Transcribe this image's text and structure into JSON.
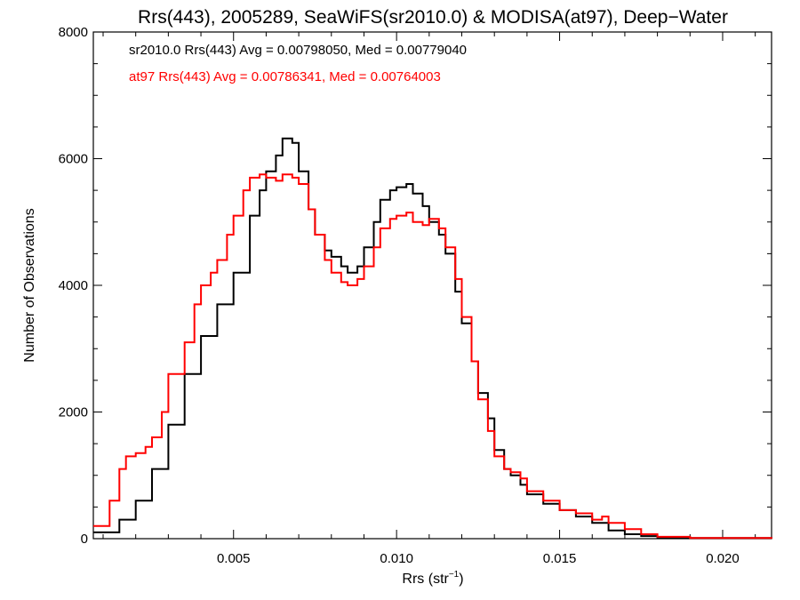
{
  "chart_data": {
    "type": "line",
    "title": "Rrs(443), 2005289, SeaWiFS(sr2010.0) & MODISA(at97), Deep−Water",
    "xlabel": "Rrs (str",
    "xlabel_sup": "−1",
    "xlabel_close": ")",
    "ylabel": "Number of Observations",
    "xlim": [
      0.0007,
      0.0215
    ],
    "ylim": [
      0,
      8000
    ],
    "xticks": [
      0.005,
      0.01,
      0.015,
      0.02
    ],
    "xtick_labels": [
      "0.005",
      "0.010",
      "0.015",
      "0.020"
    ],
    "yticks": [
      0,
      2000,
      4000,
      6000,
      8000
    ],
    "ytick_labels": [
      "0",
      "2000",
      "4000",
      "6000",
      "8000"
    ],
    "grid": false,
    "legend_position": "top-left",
    "series": [
      {
        "name": "sr2010.0 Rrs(443) Avg = 0.00798050, Med = 0.00779040",
        "color": "#000000",
        "points": [
          [
            0.0007,
            100
          ],
          [
            0.0015,
            300
          ],
          [
            0.002,
            600
          ],
          [
            0.0025,
            1100
          ],
          [
            0.003,
            1800
          ],
          [
            0.0035,
            2600
          ],
          [
            0.004,
            3200
          ],
          [
            0.0045,
            3700
          ],
          [
            0.005,
            4200
          ],
          [
            0.0055,
            5100
          ],
          [
            0.0058,
            5500
          ],
          [
            0.006,
            5800
          ],
          [
            0.0063,
            6050
          ],
          [
            0.0065,
            6320
          ],
          [
            0.0068,
            6250
          ],
          [
            0.007,
            5800
          ],
          [
            0.0073,
            5200
          ],
          [
            0.0075,
            4800
          ],
          [
            0.0078,
            4550
          ],
          [
            0.008,
            4450
          ],
          [
            0.0083,
            4300
          ],
          [
            0.0085,
            4200
          ],
          [
            0.0088,
            4300
          ],
          [
            0.009,
            4600
          ],
          [
            0.0093,
            5000
          ],
          [
            0.0095,
            5350
          ],
          [
            0.0098,
            5500
          ],
          [
            0.01,
            5550
          ],
          [
            0.0103,
            5600
          ],
          [
            0.0105,
            5450
          ],
          [
            0.0108,
            5250
          ],
          [
            0.011,
            5000
          ],
          [
            0.0113,
            4800
          ],
          [
            0.0115,
            4500
          ],
          [
            0.0118,
            3900
          ],
          [
            0.012,
            3400
          ],
          [
            0.0123,
            2800
          ],
          [
            0.0125,
            2300
          ],
          [
            0.0128,
            1900
          ],
          [
            0.013,
            1400
          ],
          [
            0.0133,
            1100
          ],
          [
            0.0135,
            1000
          ],
          [
            0.0138,
            850
          ],
          [
            0.014,
            700
          ],
          [
            0.0145,
            550
          ],
          [
            0.015,
            450
          ],
          [
            0.0155,
            350
          ],
          [
            0.016,
            250
          ],
          [
            0.0165,
            130
          ],
          [
            0.017,
            70
          ],
          [
            0.0175,
            40
          ],
          [
            0.018,
            20
          ],
          [
            0.019,
            10
          ],
          [
            0.0215,
            0
          ]
        ]
      },
      {
        "name": "at97 Rrs(443) Avg = 0.00786341, Med = 0.00764003",
        "color": "#ff0000",
        "points": [
          [
            0.0007,
            200
          ],
          [
            0.0012,
            600
          ],
          [
            0.0015,
            1100
          ],
          [
            0.0017,
            1300
          ],
          [
            0.002,
            1350
          ],
          [
            0.0023,
            1450
          ],
          [
            0.0025,
            1600
          ],
          [
            0.0028,
            2000
          ],
          [
            0.003,
            2600
          ],
          [
            0.0035,
            3100
          ],
          [
            0.0038,
            3700
          ],
          [
            0.004,
            4000
          ],
          [
            0.0043,
            4200
          ],
          [
            0.0045,
            4400
          ],
          [
            0.0048,
            4800
          ],
          [
            0.005,
            5100
          ],
          [
            0.0053,
            5500
          ],
          [
            0.0055,
            5700
          ],
          [
            0.0058,
            5750
          ],
          [
            0.006,
            5700
          ],
          [
            0.0063,
            5650
          ],
          [
            0.0065,
            5750
          ],
          [
            0.0068,
            5700
          ],
          [
            0.007,
            5600
          ],
          [
            0.0073,
            5200
          ],
          [
            0.0075,
            4800
          ],
          [
            0.0078,
            4400
          ],
          [
            0.008,
            4200
          ],
          [
            0.0083,
            4050
          ],
          [
            0.0085,
            4000
          ],
          [
            0.0088,
            4100
          ],
          [
            0.009,
            4300
          ],
          [
            0.0093,
            4600
          ],
          [
            0.0095,
            4900
          ],
          [
            0.0098,
            5050
          ],
          [
            0.01,
            5100
          ],
          [
            0.0103,
            5150
          ],
          [
            0.0105,
            5000
          ],
          [
            0.0108,
            4950
          ],
          [
            0.011,
            5050
          ],
          [
            0.0113,
            4900
          ],
          [
            0.0115,
            4600
          ],
          [
            0.0118,
            4100
          ],
          [
            0.012,
            3500
          ],
          [
            0.0123,
            2800
          ],
          [
            0.0125,
            2200
          ],
          [
            0.0128,
            1700
          ],
          [
            0.013,
            1300
          ],
          [
            0.0133,
            1100
          ],
          [
            0.0135,
            1050
          ],
          [
            0.0138,
            950
          ],
          [
            0.014,
            750
          ],
          [
            0.0145,
            600
          ],
          [
            0.015,
            450
          ],
          [
            0.0155,
            400
          ],
          [
            0.016,
            300
          ],
          [
            0.0163,
            350
          ],
          [
            0.0165,
            250
          ],
          [
            0.017,
            150
          ],
          [
            0.0175,
            70
          ],
          [
            0.018,
            30
          ],
          [
            0.019,
            10
          ],
          [
            0.0215,
            0
          ]
        ]
      }
    ]
  }
}
